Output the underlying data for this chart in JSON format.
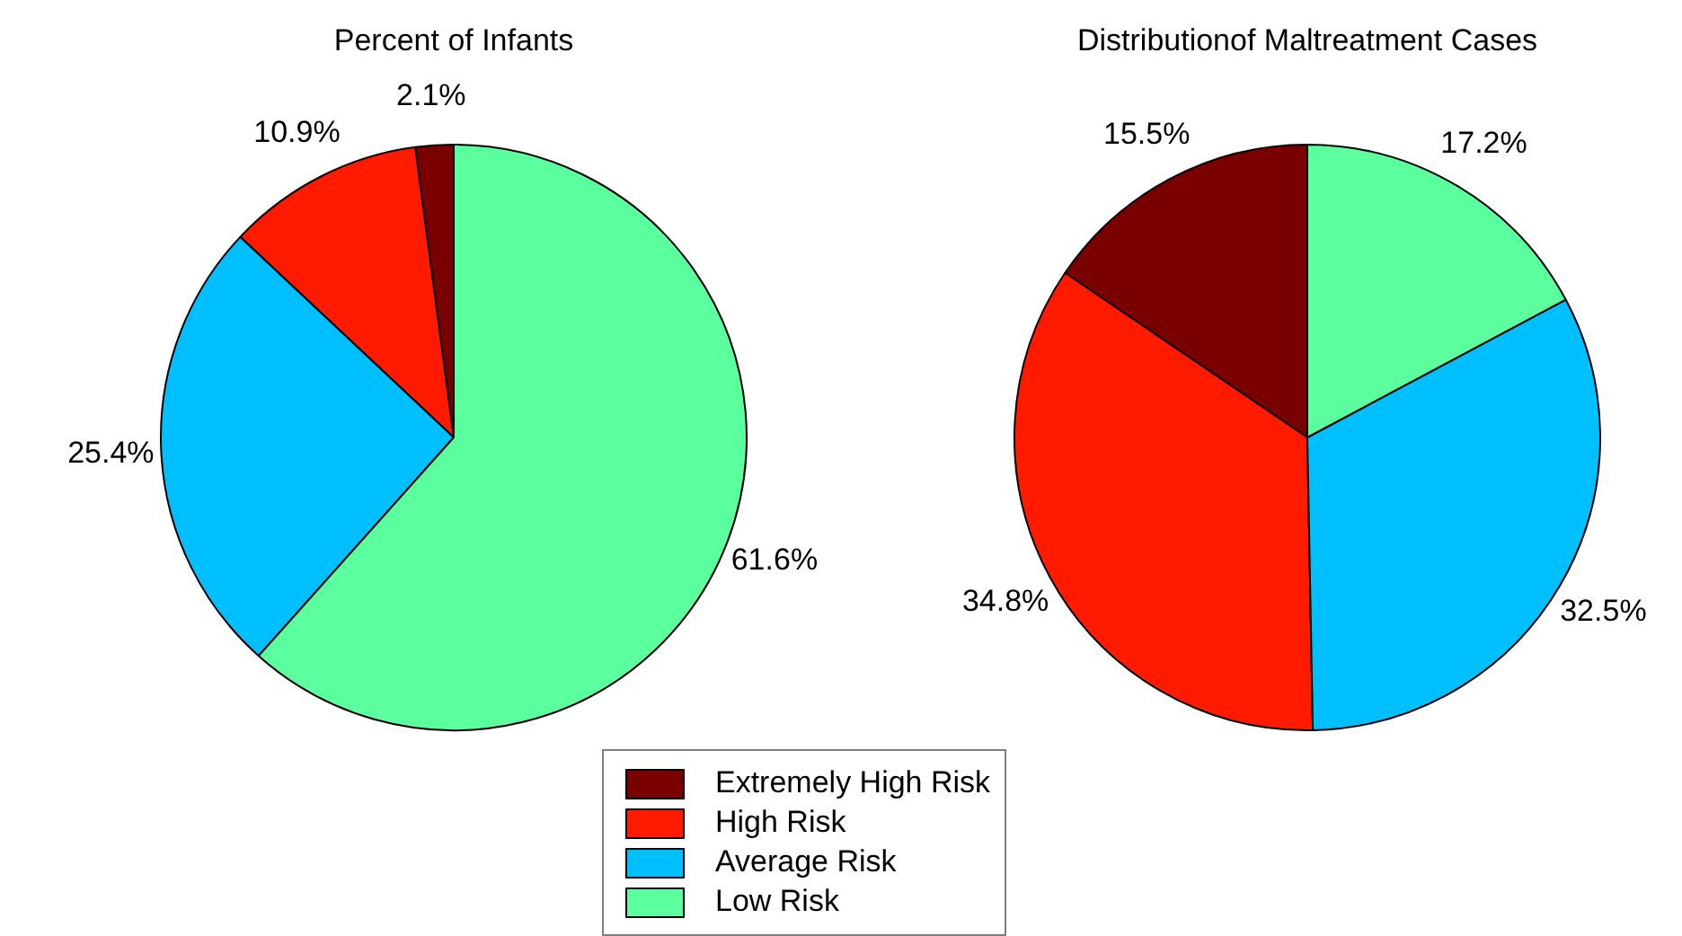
{
  "chart_data": [
    {
      "type": "pie",
      "title": "Percent of Infants",
      "categories": [
        "Extremely High Risk",
        "High Risk",
        "Average Risk",
        "Low Risk"
      ],
      "values": [
        2.1,
        10.9,
        25.4,
        61.6
      ],
      "value_labels": [
        "2.1%",
        "10.9%",
        "25.4%",
        "61.6%"
      ],
      "colors": [
        "#7a0000",
        "#ff1a00",
        "#00bfff",
        "#5cff9d"
      ],
      "legend": "bottom"
    },
    {
      "type": "pie",
      "title": "Distributionof Maltreatment Cases",
      "categories": [
        null,
        null,
        null,
        null
      ],
      "values": [
        15.5,
        34.8,
        32.5,
        17.2
      ],
      "value_labels": [
        "15.5%",
        "34.8%",
        "32.5%",
        "17.2%"
      ],
      "colors": [
        "#7a0000",
        "#ff1a00",
        "#00bfff",
        "#5cff9d"
      ]
    }
  ]
}
